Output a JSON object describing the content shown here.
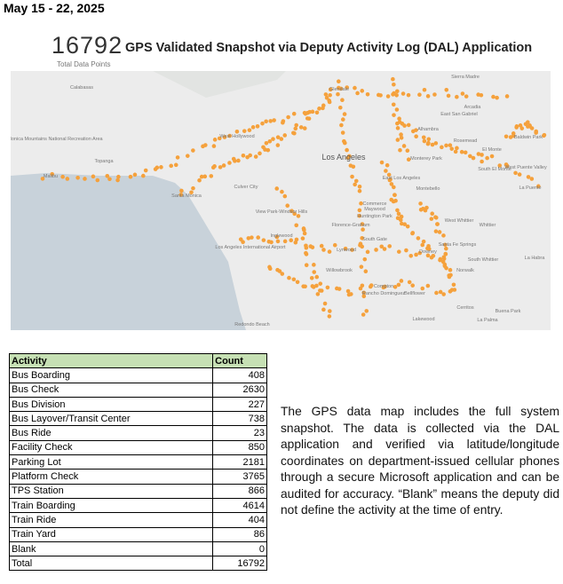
{
  "header": {
    "date_range": "May 15 - 22, 2025"
  },
  "summary": {
    "total": 16792,
    "total_label": "Total Data Points",
    "title": "GPS Validated Snapshot via Deputy Activity Log (DAL) Application"
  },
  "map": {
    "places": [
      {
        "label": "Calabasas"
      },
      {
        "label": "Glendale"
      },
      {
        "label": "Sierra Madre"
      },
      {
        "label": "Arcadia"
      },
      {
        "label": "East San Gabriel"
      },
      {
        "label": "Alhambra"
      },
      {
        "label": "Rosemead"
      },
      {
        "label": "El Monte"
      },
      {
        "label": "Baldwin Park"
      },
      {
        "label": "West Hollywood"
      },
      {
        "label": "Los Angeles"
      },
      {
        "label": "Monterey Park"
      },
      {
        "label": "South El Monte"
      },
      {
        "label": "West Puente Valley"
      },
      {
        "label": "La Puente"
      },
      {
        "label": "Santa Monica"
      },
      {
        "label": "Culver City"
      },
      {
        "label": "East Los Angeles"
      },
      {
        "label": "Montebello"
      },
      {
        "label": "Malibu"
      },
      {
        "label": "Topanga"
      },
      {
        "label": "View Park-Windsor Hills"
      },
      {
        "label": "Maywood"
      },
      {
        "label": "Commerce"
      },
      {
        "label": "West Whittier"
      },
      {
        "label": "Whittier"
      },
      {
        "label": "Inglewood"
      },
      {
        "label": "Florence-Graham"
      },
      {
        "label": "Huntington Park"
      },
      {
        "label": "South Gate"
      },
      {
        "label": "Downey"
      },
      {
        "label": "Santa Fe Springs"
      },
      {
        "label": "South Whittier"
      },
      {
        "label": "La Habra"
      },
      {
        "label": "Los Angeles International Airport"
      },
      {
        "label": "Lynwood"
      },
      {
        "label": "Norwalk"
      },
      {
        "label": "Willowbrook"
      },
      {
        "label": "Compton"
      },
      {
        "label": "Rancho Dominguez"
      },
      {
        "label": "Bellflower"
      },
      {
        "label": "Cerritos"
      },
      {
        "label": "Buena Park"
      },
      {
        "label": "Redondo Beach"
      },
      {
        "label": "Lakewood"
      },
      {
        "label": "La Palma"
      },
      {
        "label": "Santa Monica Mountains National Recreation Area"
      }
    ]
  },
  "table": {
    "columns": [
      "Activity",
      "Count"
    ],
    "rows": [
      [
        "Bus Boarding",
        408
      ],
      [
        "Bus Check",
        2630
      ],
      [
        "Bus Division",
        227
      ],
      [
        "Bus Layover/Transit Center",
        738
      ],
      [
        "Bus Ride",
        23
      ],
      [
        "Facility Check",
        850
      ],
      [
        "Parking Lot",
        2181
      ],
      [
        "Platform Check",
        3765
      ],
      [
        "TPS Station",
        866
      ],
      [
        "Train Boarding",
        4614
      ],
      [
        "Train Ride",
        404
      ],
      [
        "Train Yard",
        86
      ],
      [
        "Blank",
        0
      ],
      [
        "Total",
        16792
      ]
    ]
  },
  "note": "The GPS data map includes the full system snapshot. The data is collected via the DAL application and verified via latitude/longitude coordinates on department-issued cellular phones through a secure Microsoft application and can be audited for accuracy. “Blank” means the deputy did not define the activity at the time of entry."
}
